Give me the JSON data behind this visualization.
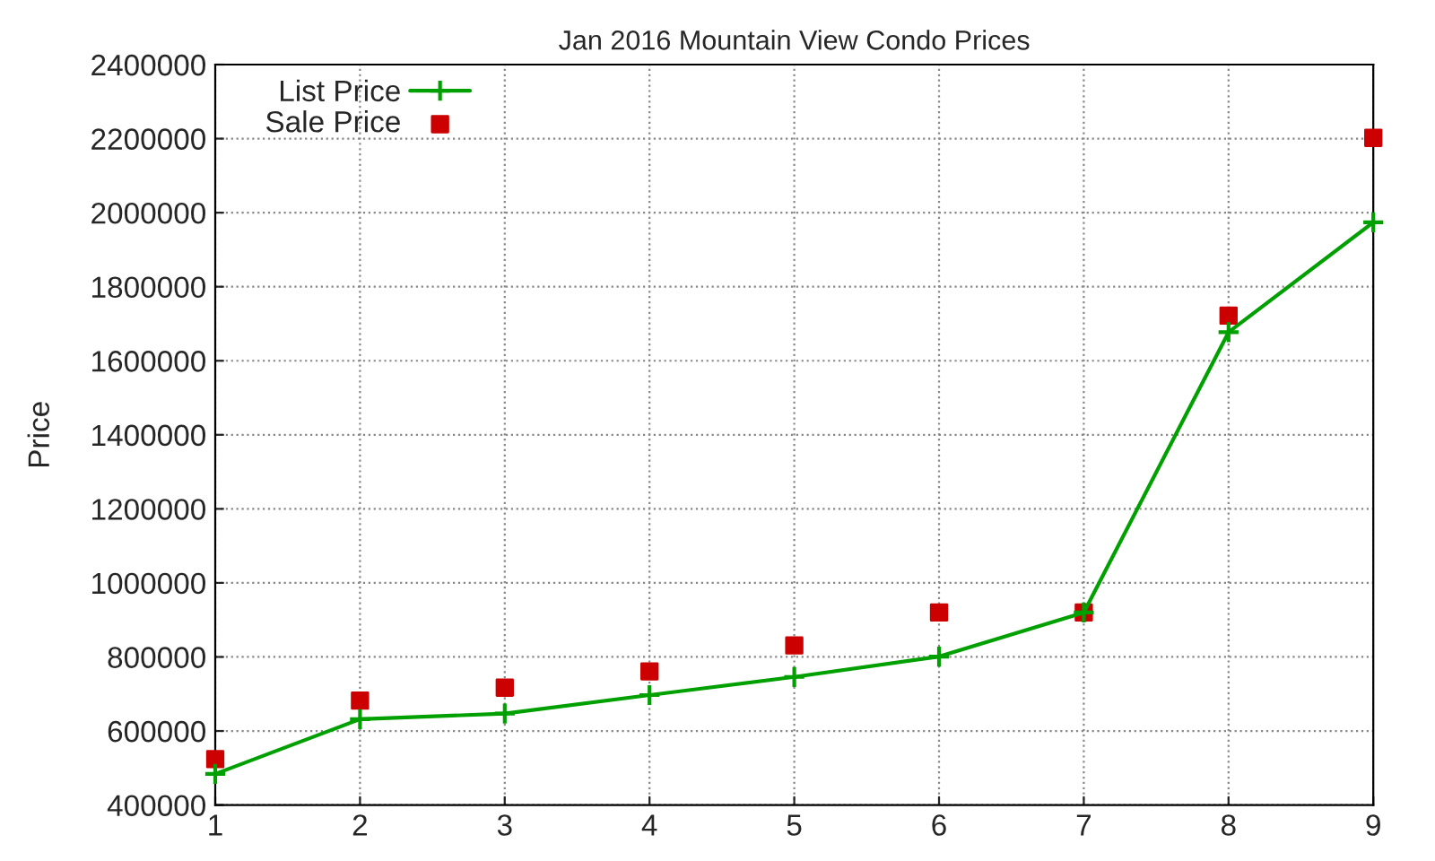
{
  "chart_data": {
    "type": "line",
    "title": "Jan 2016 Mountain View Condo Prices",
    "ylabel": "Price",
    "x": [
      1,
      2,
      3,
      4,
      5,
      6,
      7,
      8,
      9
    ],
    "series": [
      {
        "name": "List Price",
        "color": "#00a000",
        "marker": "cross",
        "line_style": "solid",
        "values": [
          484000,
          632000,
          647000,
          697000,
          746000,
          801000,
          920000,
          1677000,
          1974000
        ]
      },
      {
        "name": "Sale Price",
        "type": "scatter",
        "color": "#cc0000",
        "marker": "square",
        "values": [
          524000,
          682000,
          717000,
          761000,
          831000,
          920000,
          920000,
          1722000,
          2202000
        ]
      }
    ],
    "xlim": [
      1,
      9
    ],
    "xticks": [
      1,
      2,
      3,
      4,
      5,
      6,
      7,
      8,
      9
    ],
    "ylim": [
      400000,
      2400000
    ],
    "yticks": [
      400000,
      600000,
      800000,
      1000000,
      1200000,
      1400000,
      1600000,
      1800000,
      2000000,
      2200000,
      2400000
    ],
    "grid": true,
    "legend": "top left"
  }
}
